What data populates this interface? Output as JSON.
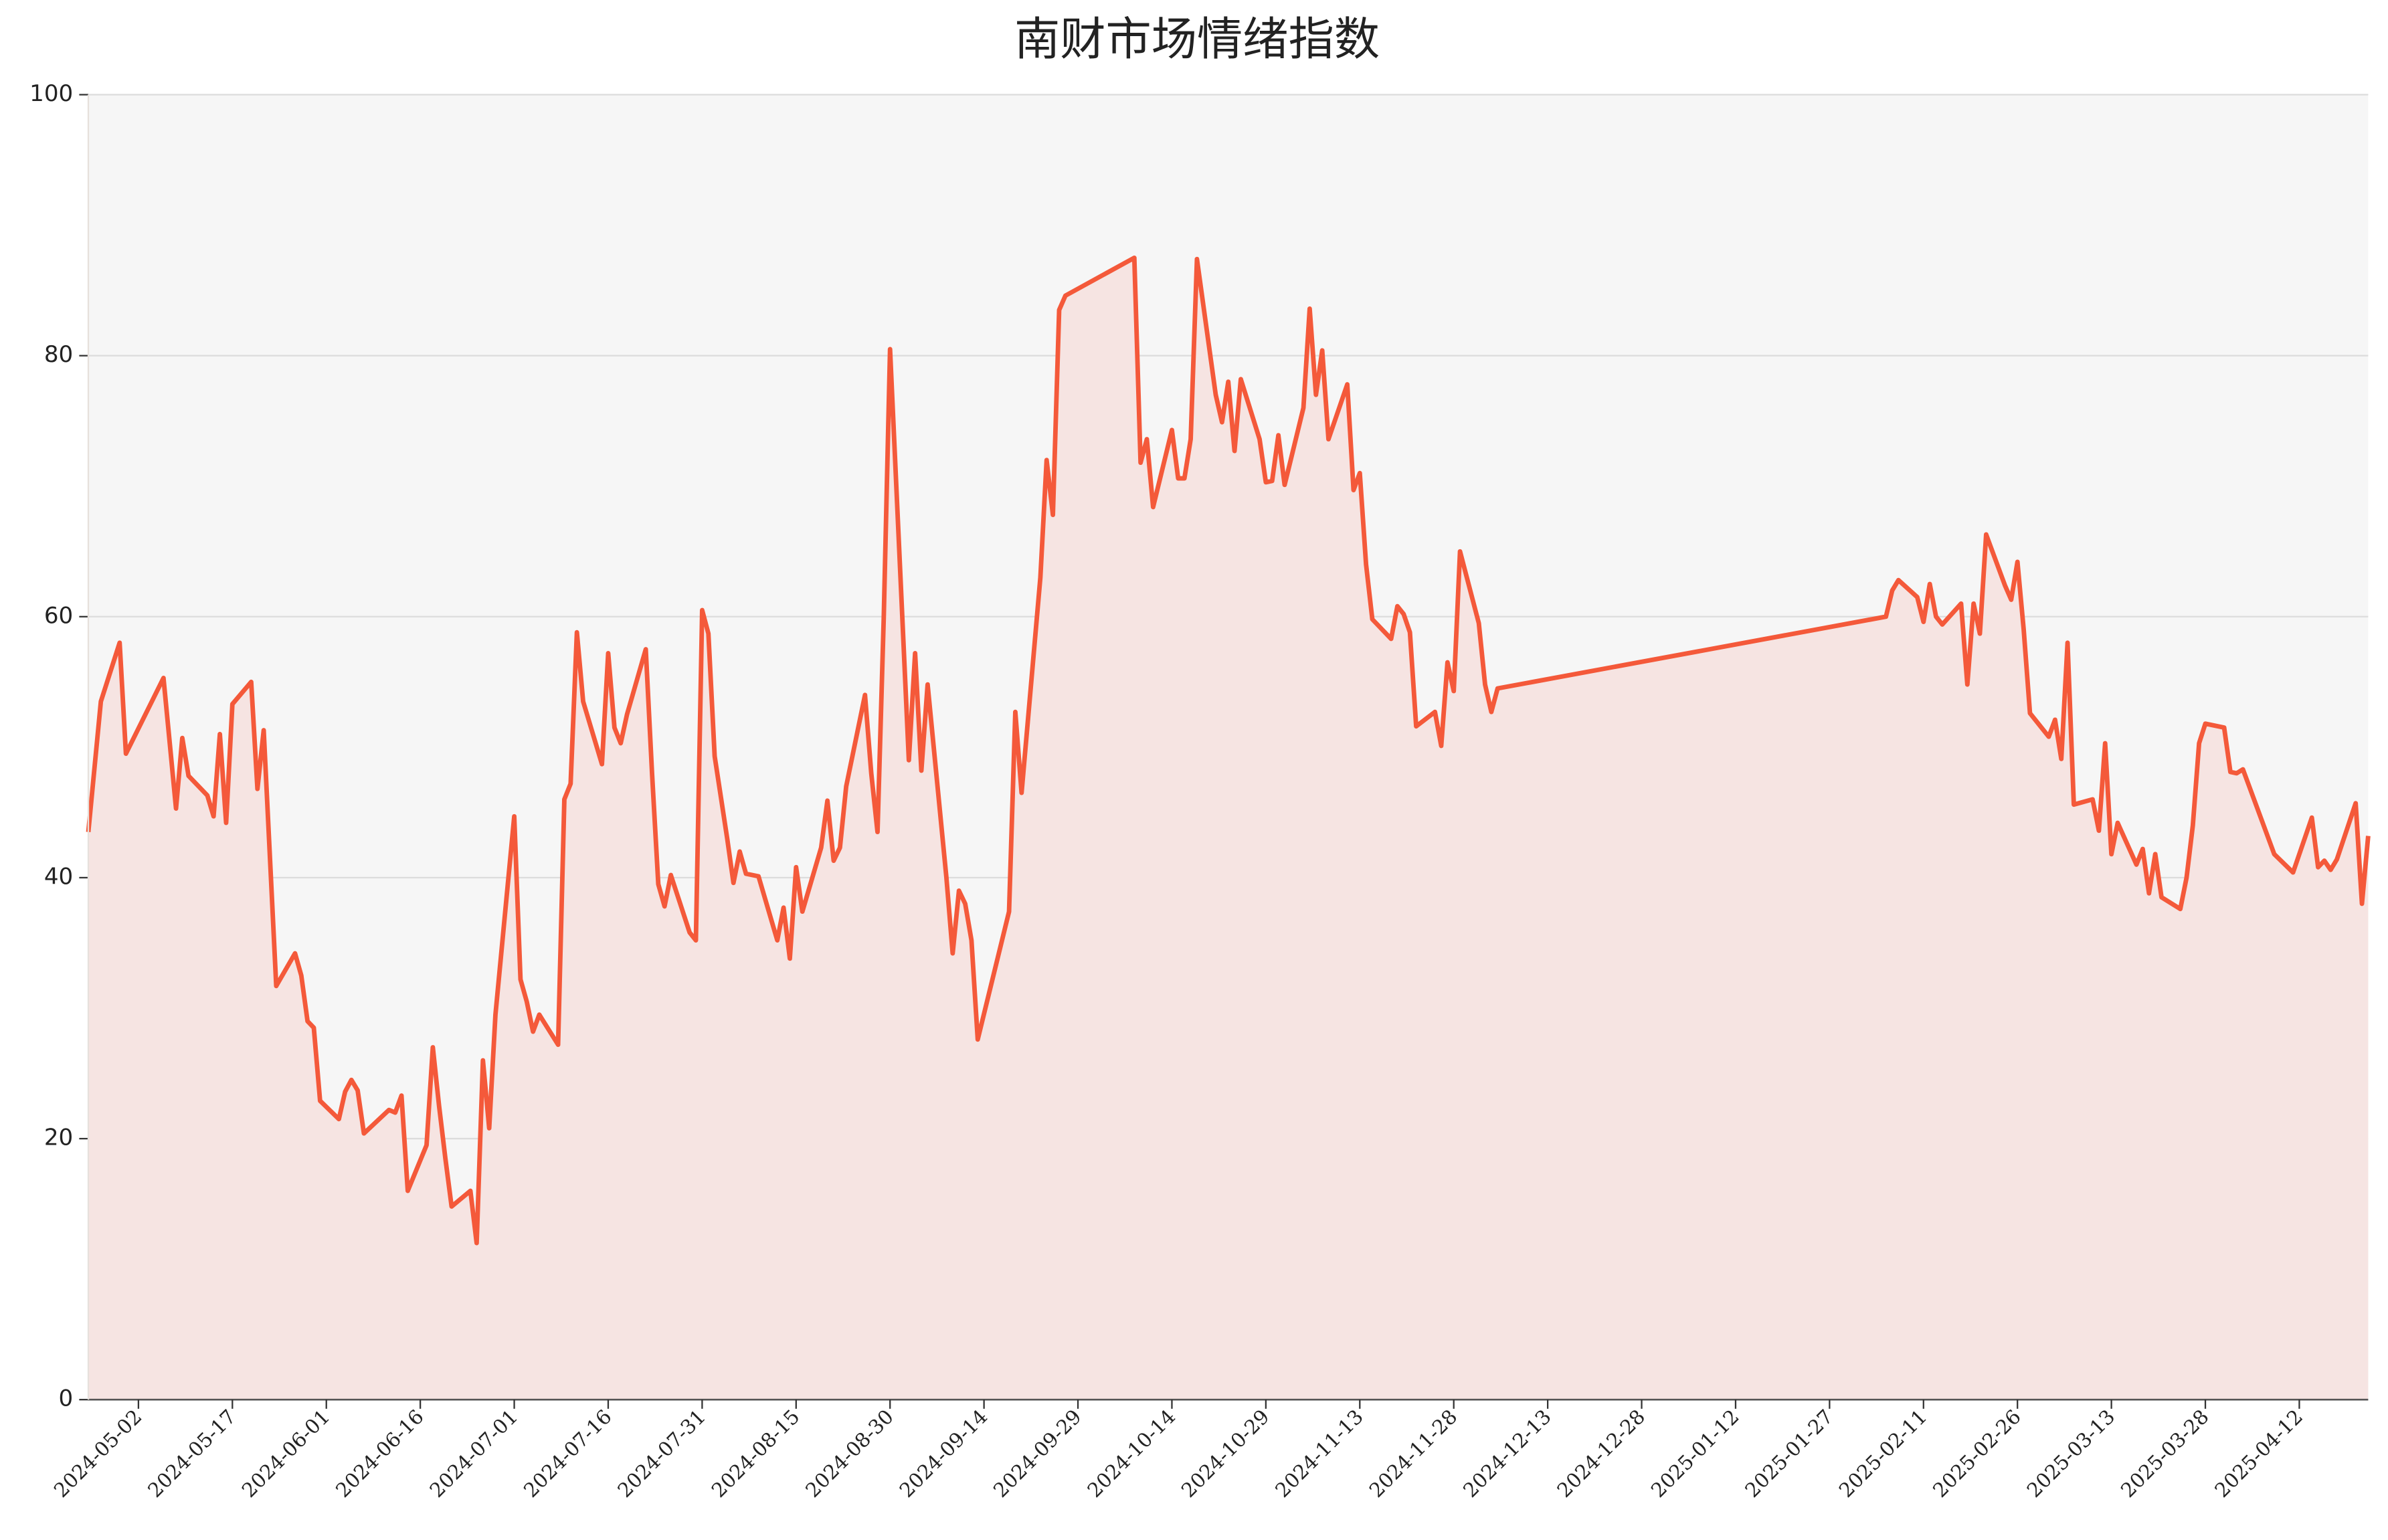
{
  "chart_data": {
    "type": "line",
    "title": "南财市场情绪指数",
    "x": [
      "2024-04-24",
      "2024-04-26",
      "2024-04-29",
      "2024-04-30",
      "2024-05-06",
      "2024-05-08",
      "2024-05-09",
      "2024-05-10",
      "2024-05-13",
      "2024-05-14",
      "2024-05-15",
      "2024-05-16",
      "2024-05-17",
      "2024-05-20",
      "2024-05-21",
      "2024-05-22",
      "2024-05-24",
      "2024-05-27",
      "2024-05-28",
      "2024-05-29",
      "2024-05-30",
      "2024-05-31",
      "2024-06-03",
      "2024-06-04",
      "2024-06-05",
      "2024-06-06",
      "2024-06-07",
      "2024-06-11",
      "2024-06-12",
      "2024-06-13",
      "2024-06-14",
      "2024-06-17",
      "2024-06-18",
      "2024-06-19",
      "2024-06-20",
      "2024-06-21",
      "2024-06-24",
      "2024-06-25",
      "2024-06-26",
      "2024-06-27",
      "2024-06-28",
      "2024-07-01",
      "2024-07-02",
      "2024-07-03",
      "2024-07-04",
      "2024-07-05",
      "2024-07-08",
      "2024-07-09",
      "2024-07-10",
      "2024-07-11",
      "2024-07-12",
      "2024-07-15",
      "2024-07-16",
      "2024-07-17",
      "2024-07-18",
      "2024-07-19",
      "2024-07-22",
      "2024-07-23",
      "2024-07-24",
      "2024-07-25",
      "2024-07-26",
      "2024-07-29",
      "2024-07-30",
      "2024-07-31",
      "2024-08-01",
      "2024-08-02",
      "2024-08-04",
      "2024-08-05",
      "2024-08-06",
      "2024-08-07",
      "2024-08-09",
      "2024-08-12",
      "2024-08-13",
      "2024-08-14",
      "2024-08-15",
      "2024-08-16",
      "2024-08-19",
      "2024-08-20",
      "2024-08-21",
      "2024-08-22",
      "2024-08-23",
      "2024-08-26",
      "2024-08-27",
      "2024-08-28",
      "2024-08-29",
      "2024-08-30",
      "2024-09-02",
      "2024-09-03",
      "2024-09-04",
      "2024-09-05",
      "2024-09-08",
      "2024-09-09",
      "2024-09-10",
      "2024-09-11",
      "2024-09-12",
      "2024-09-13",
      "2024-09-18",
      "2024-09-19",
      "2024-09-20",
      "2024-09-21",
      "2024-09-23",
      "2024-09-24",
      "2024-09-25",
      "2024-09-26",
      "2024-09-27",
      "2024-10-08",
      "2024-10-09",
      "2024-10-10",
      "2024-10-11",
      "2024-10-14",
      "2024-10-15",
      "2024-10-16",
      "2024-10-17",
      "2024-10-18",
      "2024-10-21",
      "2024-10-22",
      "2024-10-23",
      "2024-10-24",
      "2024-10-25",
      "2024-10-28",
      "2024-10-29",
      "2024-10-30",
      "2024-10-31",
      "2024-11-01",
      "2024-11-04",
      "2024-11-05",
      "2024-11-06",
      "2024-11-07",
      "2024-11-08",
      "2024-11-11",
      "2024-11-12",
      "2024-11-13",
      "2024-11-14",
      "2024-11-15",
      "2024-11-18",
      "2024-11-19",
      "2024-11-20",
      "2024-11-21",
      "2024-11-22",
      "2024-11-25",
      "2024-11-26",
      "2024-11-27",
      "2024-11-28",
      "2024-11-29",
      "2024-12-02",
      "2024-12-03",
      "2024-12-04",
      "2024-12-05",
      "2025-02-05",
      "2025-02-06",
      "2025-02-07",
      "2025-02-10",
      "2025-02-11",
      "2025-02-12",
      "2025-02-13",
      "2025-02-14",
      "2025-02-17",
      "2025-02-18",
      "2025-02-19",
      "2025-02-20",
      "2025-02-21",
      "2025-02-24",
      "2025-02-25",
      "2025-02-26",
      "2025-02-27",
      "2025-02-28",
      "2025-03-03",
      "2025-03-04",
      "2025-03-05",
      "2025-03-06",
      "2025-03-07",
      "2025-03-10",
      "2025-03-11",
      "2025-03-12",
      "2025-03-13",
      "2025-03-14",
      "2025-03-17",
      "2025-03-18",
      "2025-03-19",
      "2025-03-20",
      "2025-03-21",
      "2025-03-24",
      "2025-03-25",
      "2025-03-26",
      "2025-03-27",
      "2025-03-28",
      "2025-03-31",
      "2025-04-01",
      "2025-04-02",
      "2025-04-03",
      "2025-04-08",
      "2025-04-11",
      "2025-04-14",
      "2025-04-15",
      "2025-04-16",
      "2025-04-17",
      "2025-04-18",
      "2025-04-21",
      "2025-04-22",
      "2025-04-23"
    ],
    "values": [
      43.5,
      53.5,
      58,
      49.5,
      55.3,
      45.3,
      50.7,
      47.8,
      46.3,
      44.7,
      51,
      44.2,
      53.3,
      55,
      46.8,
      51.3,
      31.7,
      34.2,
      32.5,
      29,
      28.5,
      22.9,
      21.5,
      23.6,
      24.5,
      23.7,
      20.4,
      22.2,
      22,
      23.3,
      16,
      19.5,
      27,
      22.5,
      18.5,
      14.8,
      16,
      12,
      26,
      20.8,
      29.5,
      44.7,
      32.2,
      30.5,
      28.2,
      29.5,
      27.2,
      46,
      47.2,
      58.8,
      53.5,
      48.7,
      57.2,
      51.5,
      50.3,
      52.5,
      57.5,
      48,
      39.5,
      37.8,
      40.2,
      35.8,
      35.2,
      60.5,
      58.7,
      49.3,
      43,
      39.6,
      42,
      40.3,
      40.1,
      35.2,
      37.7,
      33.8,
      40.8,
      37.4,
      42.3,
      45.9,
      41.3,
      42.3,
      47,
      54,
      48,
      43.5,
      60,
      80.5,
      49,
      57.2,
      48.2,
      54.8,
      40,
      34.2,
      39,
      38,
      35.2,
      27.6,
      37.4,
      52.7,
      46.5,
      52,
      63,
      72,
      67.8,
      83.5,
      84.6,
      87.5,
      71.8,
      73.6,
      68.4,
      74.3,
      70.6,
      70.6,
      73.6,
      87.4,
      77,
      74.9,
      78,
      72.7,
      78.2,
      73.6,
      70.3,
      70.4,
      73.9,
      70.1,
      76,
      83.6,
      77,
      80.4,
      73.6,
      77.8,
      69.7,
      71,
      64,
      59.8,
      58.3,
      60.8,
      60.2,
      58.8,
      51.6,
      52.7,
      50.1,
      56.5,
      54.3,
      65,
      59.5,
      54.8,
      52.7,
      54.5,
      60,
      62,
      62.8,
      61.5,
      59.6,
      62.5,
      60,
      59.4,
      61,
      54.8,
      61,
      58.7,
      66.3,
      62.4,
      61.3,
      64.2,
      59,
      52.6,
      50.8,
      52.1,
      49.1,
      58,
      45.6,
      46,
      43.6,
      50.3,
      41.8,
      44.2,
      41,
      42.2,
      38.8,
      41.8,
      38.5,
      37.6,
      40,
      44,
      50.3,
      51.8,
      51.5,
      48.1,
      48,
      48.3,
      41.8,
      40.4,
      44.6,
      40.8,
      41.3,
      40.6,
      41.4,
      45.7,
      38,
      43.2
    ],
    "color": "#f4593a",
    "fill_color": "#f6e4e2",
    "xlim": [
      "2024-04-24",
      "2025-04-23"
    ],
    "xticks": [
      "2024-05-02",
      "2024-05-17",
      "2024-06-01",
      "2024-06-16",
      "2024-07-01",
      "2024-07-16",
      "2024-07-31",
      "2024-08-15",
      "2024-08-30",
      "2024-09-14",
      "2024-09-29",
      "2024-10-14",
      "2024-10-29",
      "2024-11-13",
      "2024-11-28",
      "2024-12-13",
      "2024-12-28",
      "2025-01-12",
      "2025-01-27",
      "2025-02-11",
      "2025-02-26",
      "2025-03-13",
      "2025-03-28",
      "2025-04-12"
    ],
    "ylim": [
      0,
      100
    ],
    "yticks": [
      0,
      20,
      40,
      60,
      80,
      100
    ],
    "grid": true
  }
}
